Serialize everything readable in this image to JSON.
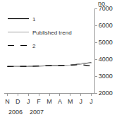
{
  "chart_data": {
    "type": "line",
    "y_label": "no.",
    "categories": [
      "N",
      "D",
      "J",
      "F",
      "M",
      "A",
      "M",
      "J",
      "J"
    ],
    "series": [
      {
        "name": "1",
        "color": "#000000",
        "line_style": "solid",
        "values": [
          3570,
          3560,
          3580,
          3600,
          3610,
          3620,
          3650,
          3720,
          3800
        ]
      },
      {
        "name": "Published trend",
        "color": "#b4b4b4",
        "line_style": "solid",
        "values": [
          3570,
          3560,
          3580,
          3600,
          3610,
          3620,
          3650,
          3720,
          3780
        ]
      },
      {
        "name": "2",
        "color": "#000000",
        "line_style": "dash",
        "values": [
          3570,
          3560,
          3580,
          3600,
          3610,
          3620,
          3650,
          3680,
          3600
        ]
      }
    ],
    "annotations": [
      {
        "text": "2006",
        "x": 0
      },
      {
        "text": "2007",
        "x": 2
      }
    ],
    "ylim": [
      2000,
      7000
    ],
    "yticks": [
      2000,
      3000,
      4000,
      5000,
      6000,
      7000
    ],
    "grid": false,
    "legend": "top-left"
  }
}
